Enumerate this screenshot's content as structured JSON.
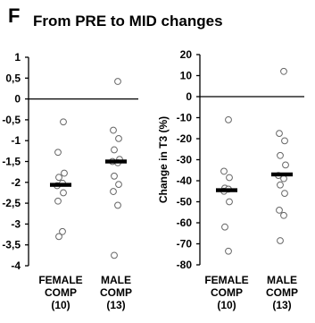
{
  "panel_letter": "F",
  "title": "From PRE to MID changes",
  "chart_data": [
    {
      "type": "scatter",
      "title": "",
      "xlabel": "",
      "ylabel": "",
      "ylim": [
        -4,
        1
      ],
      "yticks": [
        1,
        0.5,
        0,
        -0.5,
        -1,
        -1.5,
        -2,
        -2.5,
        -3,
        -3.5,
        -4
      ],
      "ytick_labels": [
        "1",
        "0,5",
        "0",
        "-0,5",
        "-1",
        "-1,5",
        "-2",
        "-2,5",
        "-3",
        "-3,5",
        "-4"
      ],
      "grid": false,
      "categories": [
        {
          "line1": "FEMALE",
          "line2": "COMP",
          "line3": "(10)"
        },
        {
          "line1": "MALE",
          "line2": "COMP",
          "line3": "(13)"
        }
      ],
      "series": [
        {
          "points": [
            -0.55,
            -1.28,
            -1.78,
            -1.88,
            -2.02,
            -2.08,
            -2.25,
            -2.45,
            -3.18,
            -3.3
          ],
          "mean": -2.06
        },
        {
          "points": [
            0.42,
            -0.75,
            -0.95,
            -1.22,
            -1.45,
            -1.5,
            -1.53,
            -1.85,
            -2.05,
            -2.22,
            -2.55,
            -3.75
          ],
          "mean": -1.5
        }
      ]
    },
    {
      "type": "scatter",
      "title": "",
      "xlabel": "",
      "ylabel": "Change in T3 (%)",
      "ylim": [
        -80,
        20
      ],
      "yticks": [
        20,
        10,
        0,
        -10,
        -20,
        -30,
        -40,
        -50,
        -60,
        -70,
        -80
      ],
      "ytick_labels": [
        "20",
        "10",
        "0",
        "-10",
        "-20",
        "-30",
        "-40",
        "-50",
        "-60",
        "-70",
        "-80"
      ],
      "grid": false,
      "categories": [
        {
          "line1": "FEMALE",
          "line2": "COMP",
          "line3": "(10)"
        },
        {
          "line1": "MALE",
          "line2": "COMP",
          "line3": "(13)"
        }
      ],
      "series": [
        {
          "points": [
            -11,
            -35.5,
            -38.5,
            -43.5,
            -44,
            -45,
            -50,
            -62,
            -73.5
          ],
          "mean": -44.5
        },
        {
          "points": [
            12,
            -17.5,
            -21,
            -28,
            -32.5,
            -37.5,
            -39,
            -42,
            -46,
            -54,
            -56.5,
            -68.5
          ],
          "mean": -37
        }
      ]
    }
  ]
}
